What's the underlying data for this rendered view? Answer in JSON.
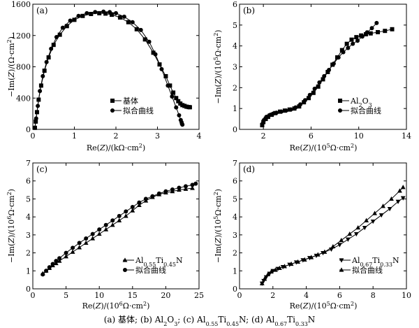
{
  "caption": {
    "parts": [
      "(a)  基体;",
      "(b) Al",
      "2",
      "O",
      "3",
      "; (c) Al",
      "0.55",
      "Ti",
      "0.45",
      "N;  (d) Al",
      "0.67",
      "Ti",
      "0.33",
      "N"
    ]
  },
  "chart_data": [
    {
      "id": "a",
      "type": "line",
      "panel_label": "(a)",
      "xlabel_parts": [
        "Re(",
        "Z",
        ")/(kΩ·cm",
        "2",
        ")"
      ],
      "ylabel_parts": [
        "−Im(",
        "Z",
        ")/(Ω·cm",
        "2",
        ")"
      ],
      "xlim": [
        0,
        4
      ],
      "ylim": [
        0,
        1600
      ],
      "xticks": [
        0,
        1,
        2,
        3,
        4
      ],
      "yticks": [
        0,
        400,
        800,
        1200,
        1600
      ],
      "ytick_labels": [
        "0",
        "400",
        "800",
        "1200",
        "1600"
      ],
      "legend_position": "bottom-right",
      "legend": [
        {
          "label": "基体",
          "marker": "square"
        },
        {
          "label": "拟合曲线",
          "marker": "circle"
        }
      ],
      "series": [
        {
          "name": "基体",
          "marker": "square",
          "x": [
            0.05,
            0.07,
            0.1,
            0.14,
            0.2,
            0.28,
            0.38,
            0.5,
            0.65,
            0.82,
            1.0,
            1.2,
            1.4,
            1.6,
            1.75,
            1.9,
            2.1,
            2.3,
            2.5,
            2.7,
            2.9,
            3.05,
            3.2,
            3.3,
            3.38,
            3.45,
            3.5,
            3.55,
            3.6,
            3.65,
            3.7,
            3.75,
            3.78
          ],
          "y": [
            20,
            100,
            220,
            380,
            560,
            750,
            920,
            1080,
            1210,
            1320,
            1400,
            1450,
            1475,
            1485,
            1480,
            1465,
            1430,
            1370,
            1280,
            1150,
            980,
            830,
            680,
            560,
            470,
            400,
            360,
            330,
            310,
            300,
            290,
            285,
            283
          ]
        },
        {
          "name": "拟合曲线",
          "marker": "circle",
          "x": [
            0.05,
            0.08,
            0.12,
            0.17,
            0.24,
            0.33,
            0.44,
            0.57,
            0.72,
            0.9,
            1.1,
            1.3,
            1.5,
            1.7,
            1.85,
            2.0,
            2.2,
            2.4,
            2.6,
            2.8,
            2.95,
            3.1,
            3.25,
            3.35,
            3.45,
            3.52,
            3.56,
            3.58,
            3.59,
            3.6
          ],
          "y": [
            20,
            140,
            300,
            490,
            680,
            860,
            1030,
            1180,
            1300,
            1390,
            1450,
            1485,
            1500,
            1505,
            1500,
            1485,
            1440,
            1370,
            1270,
            1120,
            960,
            770,
            560,
            420,
            280,
            180,
            120,
            90,
            70,
            60
          ]
        }
      ]
    },
    {
      "id": "b",
      "type": "line",
      "panel_label": "(b)",
      "xlabel_parts": [
        "Re(",
        "Z",
        ")/(10",
        "5",
        "Ω·cm",
        "2",
        ")"
      ],
      "ylabel_parts": [
        "−Im(",
        "Z",
        ")/(10",
        "5",
        "Ω·cm",
        "2",
        ")"
      ],
      "xlim": [
        0,
        14
      ],
      "ylim": [
        0,
        6
      ],
      "xticks": [
        2,
        6,
        10,
        14
      ],
      "yticks": [
        0,
        1,
        2,
        3,
        4,
        5,
        6
      ],
      "ytick_labels": [
        "0",
        "1",
        "2",
        "3",
        "4",
        "5",
        "6"
      ],
      "legend_position": "bottom-right",
      "legend": [
        {
          "label_parts": [
            "Al",
            "2",
            "O",
            "3"
          ],
          "marker": "square"
        },
        {
          "label": "拟合曲线",
          "marker": "circle"
        }
      ],
      "series": [
        {
          "name": "Al2O3",
          "marker": "square",
          "x": [
            1.9,
            2.0,
            2.2,
            2.4,
            2.7,
            3.0,
            3.4,
            3.8,
            4.2,
            4.6,
            5.0,
            5.4,
            5.8,
            6.2,
            6.6,
            7.0,
            7.4,
            7.8,
            8.2,
            8.6,
            9.0,
            9.4,
            9.8,
            10.2,
            10.6,
            11.0,
            11.6,
            12.2,
            12.8
          ],
          "y": [
            0.2,
            0.35,
            0.5,
            0.6,
            0.7,
            0.78,
            0.85,
            0.9,
            0.95,
            1.0,
            1.1,
            1.3,
            1.5,
            1.75,
            2.05,
            2.4,
            2.75,
            3.1,
            3.45,
            3.8,
            4.1,
            4.3,
            4.42,
            4.5,
            4.56,
            4.6,
            4.66,
            4.72,
            4.8
          ]
        },
        {
          "name": "拟合曲线",
          "marker": "circle",
          "x": [
            1.9,
            2.05,
            2.25,
            2.5,
            2.8,
            3.1,
            3.5,
            3.9,
            4.3,
            4.7,
            5.1,
            5.5,
            5.9,
            6.3,
            6.7,
            7.1,
            7.5,
            7.9,
            8.3,
            8.7,
            9.1,
            9.5,
            9.9,
            10.3,
            10.7,
            11.1,
            11.5
          ],
          "y": [
            0.25,
            0.45,
            0.6,
            0.68,
            0.75,
            0.8,
            0.85,
            0.9,
            0.95,
            1.05,
            1.2,
            1.4,
            1.65,
            1.95,
            2.25,
            2.55,
            2.85,
            3.15,
            3.45,
            3.7,
            3.9,
            4.1,
            4.25,
            4.45,
            4.65,
            4.85,
            5.1
          ]
        }
      ]
    },
    {
      "id": "c",
      "type": "line",
      "panel_label": "(c)",
      "xlabel_parts": [
        "Re(",
        "Z",
        ")/(10",
        "6",
        "Ω·cm",
        "2",
        ")"
      ],
      "ylabel_parts": [
        "−Im(",
        "Z",
        ")/(10",
        "6",
        "Ω·cm",
        "2",
        ")"
      ],
      "xlim": [
        0,
        25
      ],
      "ylim": [
        0,
        7
      ],
      "xticks": [
        0,
        5,
        10,
        15,
        20,
        25
      ],
      "yticks": [
        0,
        1,
        2,
        3,
        4,
        5,
        6,
        7
      ],
      "ytick_labels": [
        "0",
        "1",
        "2",
        "3",
        "4",
        "5",
        "6",
        "7"
      ],
      "legend_position": "bottom-right",
      "legend": [
        {
          "label_parts": [
            "Al",
            "0.55",
            "Ti",
            "0.45",
            "N"
          ],
          "marker": "triangle-up"
        },
        {
          "label": "拟合曲线",
          "marker": "circle"
        }
      ],
      "series": [
        {
          "name": "Al0.55Ti0.45N",
          "marker": "triangle-up",
          "x": [
            1.5,
            2.0,
            2.5,
            3.0,
            3.5,
            4.0,
            5.0,
            6.0,
            7.0,
            8.0,
            9.0,
            10.0,
            11.0,
            12.0,
            13.0,
            14.0,
            15.0,
            16.0,
            17.0,
            18.0,
            19.0,
            20.0,
            21.0,
            22.0,
            23.0,
            24.0
          ],
          "y": [
            0.85,
            1.0,
            1.15,
            1.3,
            1.42,
            1.55,
            1.8,
            2.05,
            2.3,
            2.55,
            2.8,
            3.05,
            3.3,
            3.55,
            3.8,
            4.05,
            4.35,
            4.65,
            4.9,
            5.1,
            5.25,
            5.35,
            5.42,
            5.5,
            5.55,
            5.6
          ]
        },
        {
          "name": "拟合曲线",
          "marker": "circle",
          "x": [
            1.5,
            2.0,
            2.5,
            3.0,
            3.5,
            4.0,
            5.0,
            6.0,
            7.0,
            8.0,
            9.0,
            10.0,
            11.0,
            12.0,
            13.0,
            14.0,
            15.0,
            16.0,
            17.0,
            18.0,
            19.0,
            20.0,
            21.0,
            22.0,
            23.0,
            24.0,
            24.5
          ],
          "y": [
            0.8,
            1.0,
            1.2,
            1.38,
            1.55,
            1.7,
            2.0,
            2.28,
            2.55,
            2.8,
            3.05,
            3.3,
            3.55,
            3.8,
            4.05,
            4.3,
            4.55,
            4.8,
            5.0,
            5.15,
            5.3,
            5.42,
            5.52,
            5.62,
            5.7,
            5.78,
            5.85
          ]
        }
      ]
    },
    {
      "id": "d",
      "type": "line",
      "panel_label": "(d)",
      "xlabel_parts": [
        "Re(",
        "Z",
        ")/(10",
        "5",
        "Ω·cm",
        "2",
        ")"
      ],
      "ylabel_parts": [
        "−Im(",
        "Z",
        ")/(10",
        "5",
        "Ω·cm",
        "2",
        ")"
      ],
      "xlim": [
        0,
        10
      ],
      "ylim": [
        0,
        7
      ],
      "xticks": [
        0,
        2,
        4,
        6,
        8,
        10
      ],
      "yticks": [
        0,
        1,
        2,
        3,
        4,
        5,
        6,
        7
      ],
      "ytick_labels": [
        "0",
        "1",
        "2",
        "3",
        "4",
        "5",
        "6",
        "7"
      ],
      "legend_position": "bottom-right",
      "legend": [
        {
          "label_parts": [
            "Al",
            "0.67",
            "Ti",
            "0.33",
            "N"
          ],
          "marker": "triangle-down"
        },
        {
          "label": "拟合曲线",
          "marker": "triangle-up"
        }
      ],
      "series": [
        {
          "name": "Al0.67Ti0.33N",
          "marker": "triangle-down",
          "x": [
            1.35,
            1.45,
            1.6,
            1.8,
            2.0,
            2.3,
            2.6,
            3.0,
            3.4,
            3.8,
            4.2,
            4.6,
            5.0,
            5.5,
            6.0,
            6.5,
            7.0,
            7.5,
            8.0,
            8.5,
            9.0,
            9.5,
            9.8
          ],
          "y": [
            0.3,
            0.45,
            0.65,
            0.85,
            1.0,
            1.12,
            1.22,
            1.35,
            1.48,
            1.6,
            1.72,
            1.85,
            2.0,
            2.2,
            2.45,
            2.75,
            3.05,
            3.4,
            3.75,
            4.1,
            4.45,
            4.85,
            5.05
          ]
        },
        {
          "name": "拟合曲线",
          "marker": "triangle-up",
          "x": [
            1.35,
            1.5,
            1.7,
            1.9,
            2.15,
            2.4,
            2.7,
            3.1,
            3.5,
            3.9,
            4.3,
            4.7,
            5.1,
            5.6,
            6.1,
            6.6,
            7.1,
            7.6,
            8.1,
            8.6,
            9.1,
            9.6,
            9.8
          ],
          "y": [
            0.3,
            0.55,
            0.8,
            0.95,
            1.05,
            1.15,
            1.25,
            1.38,
            1.5,
            1.62,
            1.75,
            1.9,
            2.05,
            2.35,
            2.7,
            3.05,
            3.4,
            3.8,
            4.2,
            4.6,
            5.0,
            5.45,
            5.65
          ]
        }
      ]
    }
  ]
}
